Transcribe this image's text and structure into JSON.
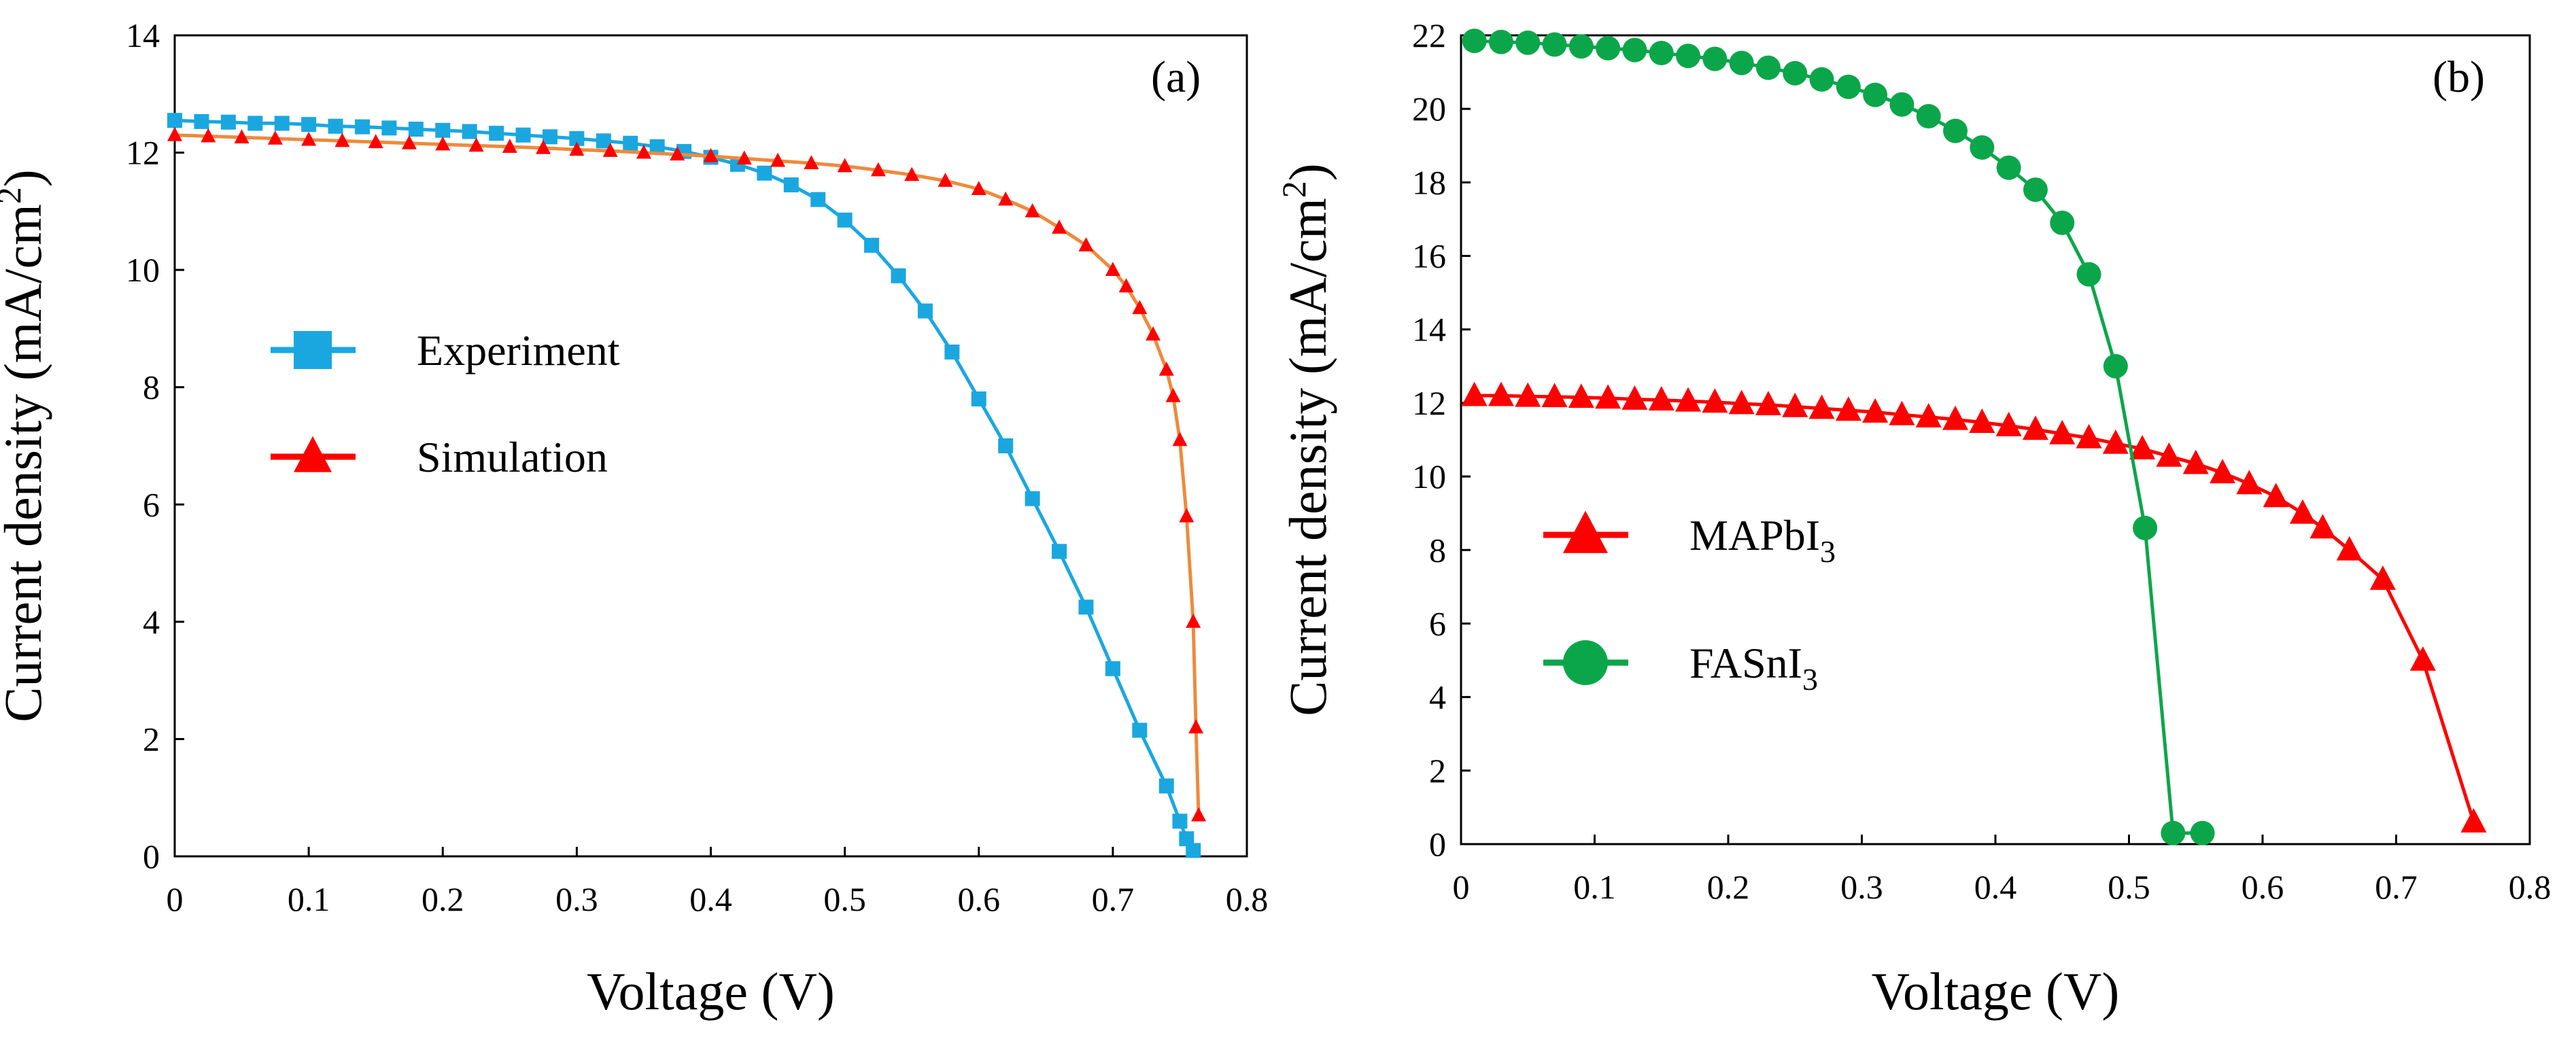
{
  "figure": {
    "background": "#ffffff",
    "marker_styles": {
      "Experiment": "square",
      "Simulation": "triangle",
      "MAPbI3": "triangle",
      "FASnI3": "circle"
    }
  },
  "chart_data": [
    {
      "type": "line",
      "panel_label": "(a)",
      "xlabel": "Voltage (V)",
      "ylabel": {
        "prefix": "Current density (mA/cm",
        "sup": "2",
        "suffix": ")"
      },
      "xlim": [
        0,
        0.8
      ],
      "ylim": [
        0,
        14
      ],
      "xticks": [
        "0",
        "0.1",
        "0.2",
        "0.3",
        "0.4",
        "0.5",
        "0.6",
        "0.7",
        "0.8"
      ],
      "yticks": [
        "0",
        "2",
        "4",
        "6",
        "8",
        "10",
        "12",
        "14"
      ],
      "grid": false,
      "legend_position": "center-left",
      "series": [
        {
          "name": "Experiment",
          "legend": {
            "main": "Experiment"
          },
          "color": "#1aa7e0",
          "line_color": "#1aa7e0",
          "x": [
            0,
            0.02,
            0.04,
            0.06,
            0.08,
            0.1,
            0.12,
            0.14,
            0.16,
            0.18,
            0.2,
            0.22,
            0.24,
            0.26,
            0.28,
            0.3,
            0.32,
            0.34,
            0.36,
            0.38,
            0.4,
            0.42,
            0.44,
            0.46,
            0.48,
            0.5,
            0.52,
            0.54,
            0.56,
            0.58,
            0.6,
            0.62,
            0.64,
            0.66,
            0.68,
            0.7,
            0.72,
            0.74,
            0.75,
            0.755,
            0.76
          ],
          "y": [
            12.55,
            12.53,
            12.52,
            12.5,
            12.5,
            12.48,
            12.45,
            12.44,
            12.42,
            12.4,
            12.38,
            12.36,
            12.33,
            12.3,
            12.27,
            12.24,
            12.2,
            12.16,
            12.1,
            12.02,
            11.92,
            11.8,
            11.65,
            11.45,
            11.2,
            10.85,
            10.42,
            9.9,
            9.3,
            8.6,
            7.8,
            7.0,
            6.1,
            5.2,
            4.25,
            3.2,
            2.15,
            1.2,
            0.6,
            0.3,
            0.1
          ]
        },
        {
          "name": "Simulation",
          "legend": {
            "main": "Simulation"
          },
          "color": "#ff0000",
          "line_color": "#ee8a3c",
          "x": [
            0,
            0.025,
            0.05,
            0.075,
            0.1,
            0.125,
            0.15,
            0.175,
            0.2,
            0.225,
            0.25,
            0.275,
            0.3,
            0.325,
            0.35,
            0.375,
            0.4,
            0.425,
            0.45,
            0.475,
            0.5,
            0.525,
            0.55,
            0.575,
            0.6,
            0.62,
            0.64,
            0.66,
            0.68,
            0.7,
            0.71,
            0.72,
            0.73,
            0.74,
            0.745,
            0.75,
            0.755,
            0.76,
            0.762,
            0.764
          ],
          "y": [
            12.3,
            12.28,
            12.26,
            12.24,
            12.22,
            12.2,
            12.18,
            12.16,
            12.14,
            12.12,
            12.1,
            12.08,
            12.05,
            12.03,
            12.0,
            11.97,
            11.94,
            11.9,
            11.86,
            11.82,
            11.77,
            11.7,
            11.62,
            11.52,
            11.38,
            11.2,
            11.0,
            10.72,
            10.42,
            10.0,
            9.72,
            9.35,
            8.9,
            8.3,
            7.85,
            7.1,
            5.8,
            4.0,
            2.2,
            0.7
          ]
        }
      ]
    },
    {
      "type": "line",
      "panel_label": "(b)",
      "xlabel": "Voltage (V)",
      "ylabel": {
        "prefix": "Current density (mA/cm",
        "sup": "2",
        "suffix": ")"
      },
      "xlim": [
        0,
        0.8
      ],
      "ylim": [
        0,
        22
      ],
      "xticks": [
        "0",
        "0.1",
        "0.2",
        "0.3",
        "0.4",
        "0.5",
        "0.6",
        "0.7",
        "0.8"
      ],
      "yticks": [
        "0",
        "2",
        "4",
        "6",
        "8",
        "10",
        "12",
        "14",
        "16",
        "18",
        "20",
        "22"
      ],
      "grid": false,
      "legend_position": "center-left",
      "series": [
        {
          "name": "MAPbI3",
          "legend": {
            "main": "MAPbI",
            "sub": "3"
          },
          "color": "#ff0000",
          "line_color": "#ff0000",
          "x": [
            0.01,
            0.03,
            0.05,
            0.07,
            0.09,
            0.11,
            0.13,
            0.15,
            0.17,
            0.19,
            0.21,
            0.23,
            0.25,
            0.27,
            0.29,
            0.31,
            0.33,
            0.35,
            0.37,
            0.39,
            0.41,
            0.43,
            0.45,
            0.47,
            0.49,
            0.51,
            0.53,
            0.55,
            0.57,
            0.59,
            0.61,
            0.63,
            0.645,
            0.665,
            0.69,
            0.72,
            0.758
          ],
          "y": [
            12.2,
            12.2,
            12.18,
            12.17,
            12.15,
            12.13,
            12.1,
            12.08,
            12.05,
            12.02,
            11.98,
            11.95,
            11.9,
            11.85,
            11.8,
            11.75,
            11.68,
            11.62,
            11.55,
            11.47,
            11.38,
            11.28,
            11.16,
            11.05,
            10.9,
            10.75,
            10.55,
            10.35,
            10.1,
            9.8,
            9.45,
            9.0,
            8.6,
            8.0,
            7.2,
            5.0,
            0.6
          ]
        },
        {
          "name": "FASnI3",
          "legend": {
            "main": "FASnI",
            "sub": "3"
          },
          "color": "#0ca64a",
          "line_color": "#0ca64a",
          "x": [
            0.01,
            0.03,
            0.05,
            0.07,
            0.09,
            0.11,
            0.13,
            0.15,
            0.17,
            0.19,
            0.21,
            0.23,
            0.25,
            0.27,
            0.29,
            0.31,
            0.33,
            0.35,
            0.37,
            0.39,
            0.41,
            0.43,
            0.45,
            0.47,
            0.49,
            0.512,
            0.533,
            0.555
          ],
          "y": [
            21.85,
            21.82,
            21.8,
            21.75,
            21.7,
            21.65,
            21.6,
            21.52,
            21.44,
            21.36,
            21.25,
            21.12,
            20.97,
            20.8,
            20.6,
            20.38,
            20.12,
            19.8,
            19.4,
            18.95,
            18.4,
            17.8,
            16.9,
            15.5,
            13.0,
            8.6,
            0.3,
            0.3
          ]
        }
      ]
    }
  ]
}
